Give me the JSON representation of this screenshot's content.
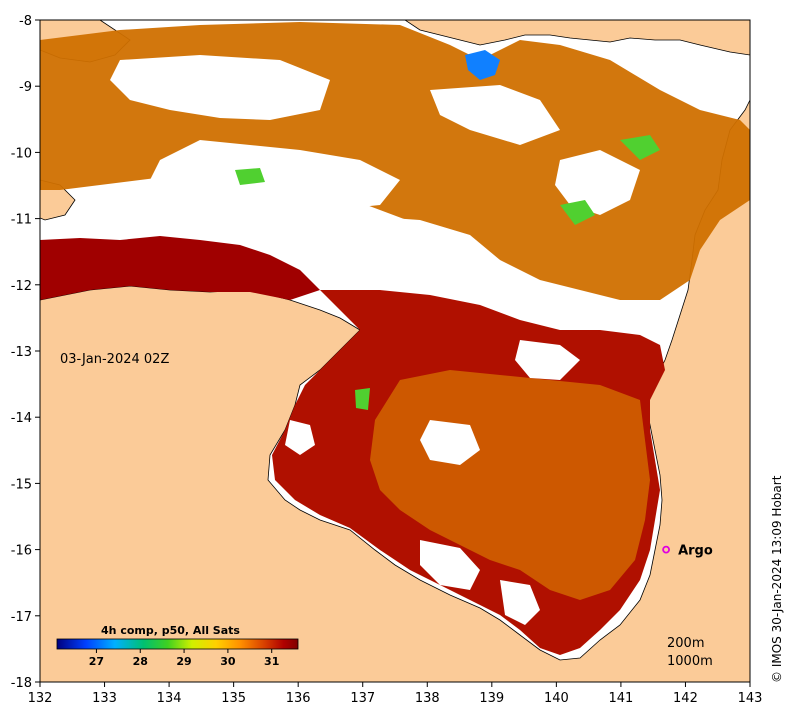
{
  "map": {
    "timestamp": "03-Jan-2024 02Z",
    "credit": "© IMOS 30-Jan-2024 13:09 Hobart",
    "colors": {
      "land": "#fbcb98",
      "no_data": "#ffffff",
      "coastline": "#000000",
      "argo_marker": "#e000e0"
    },
    "x_ticks": [
      "132",
      "133",
      "134",
      "135",
      "136",
      "137",
      "138",
      "139",
      "140",
      "141",
      "142",
      "143"
    ],
    "y_ticks": [
      "-8",
      "-9",
      "-10",
      "-11",
      "-12",
      "-13",
      "-14",
      "-15",
      "-16",
      "-17",
      "-18"
    ],
    "lon_range": [
      132,
      143
    ],
    "lat_range": [
      -18,
      -8
    ],
    "argo": {
      "label": "Argo",
      "lon": 141.7,
      "lat": -16.0
    },
    "depth_labels": [
      "200m",
      "1000m"
    ]
  },
  "colorbar": {
    "title": "4h comp, p50, All Sats",
    "ticks": [
      "27",
      "28",
      "29",
      "30",
      "31"
    ],
    "range": [
      26.1,
      31.6
    ],
    "colors": [
      "#00007f",
      "#0050ff",
      "#00c0ff",
      "#00c060",
      "#30d030",
      "#c0f000",
      "#ffe000",
      "#ffa000",
      "#e06000",
      "#b80000",
      "#800000"
    ]
  }
}
